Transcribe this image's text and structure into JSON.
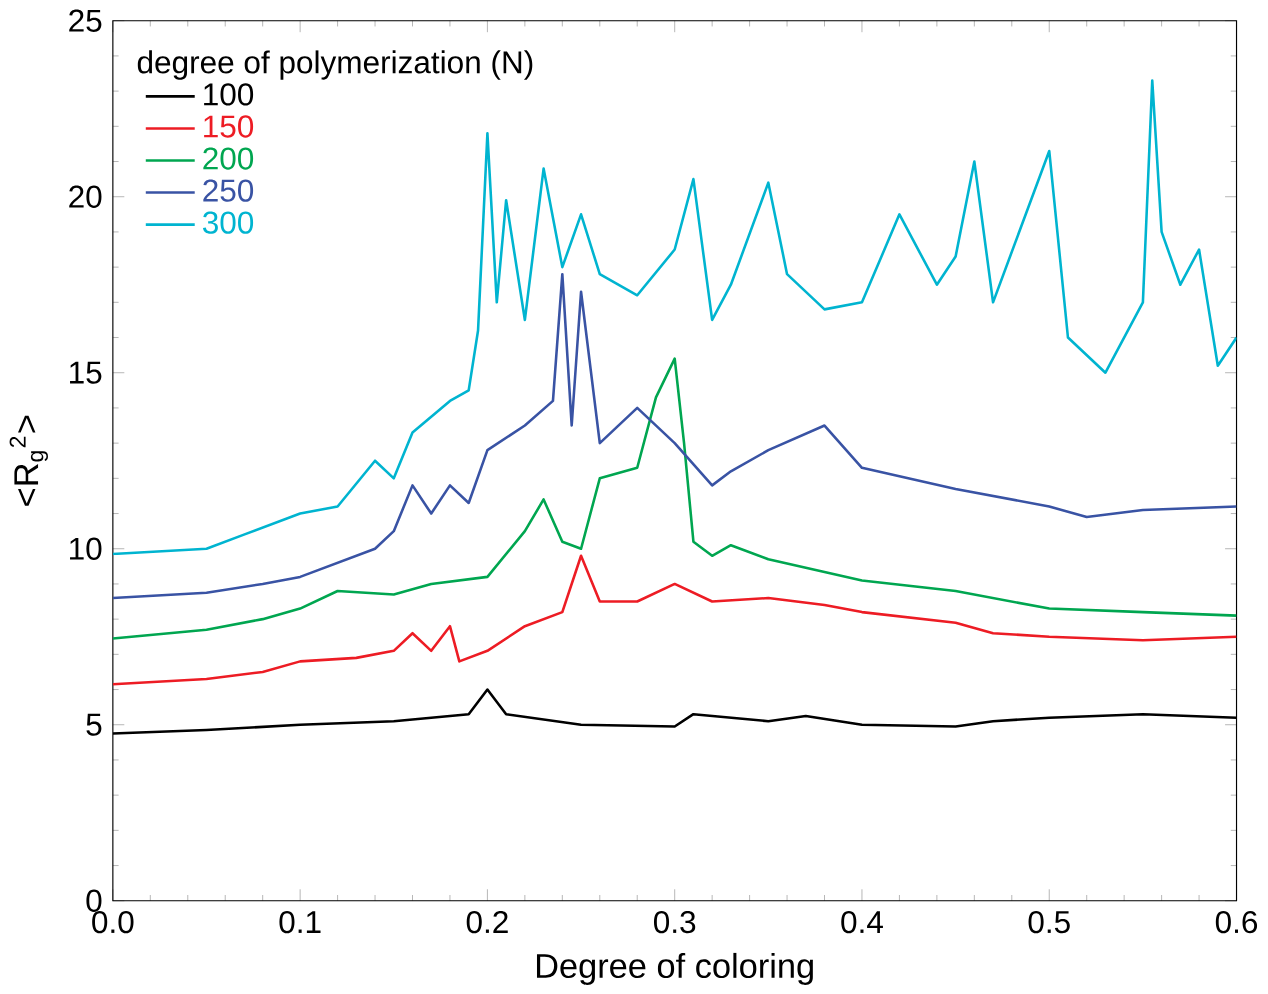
{
  "chart_data": {
    "type": "line",
    "xlabel": "Degree of coloring",
    "ylabel": "<R$_{g}$$^{2}$>",
    "legend_title": "degree of polymerization (N)",
    "legend": "top left",
    "grid": false,
    "marker": "none",
    "line_style": "solid",
    "xlim": [
      0,
      0.6
    ],
    "ylim": [
      0,
      25
    ],
    "xticks": [
      {
        "value": 0,
        "label": "0.0"
      },
      0.1,
      0.2,
      0.3,
      0.4,
      0.5,
      0.6
    ],
    "yticks": [
      0,
      5,
      10,
      15,
      20,
      25
    ],
    "series": [
      {
        "name": "100",
        "color": "#000000",
        "x": [
          0,
          0.05,
          0.1,
          0.15,
          0.19,
          0.2,
          0.21,
          0.25,
          0.3,
          0.31,
          0.35,
          0.37,
          0.4,
          0.45,
          0.47,
          0.5,
          0.55,
          0.6
        ],
        "values": [
          4.75,
          4.85,
          5.0,
          5.1,
          5.3,
          6.0,
          5.3,
          5.0,
          4.95,
          5.3,
          5.1,
          5.25,
          5.0,
          4.95,
          5.1,
          5.2,
          5.3,
          5.2
        ]
      },
      {
        "name": "150",
        "color": "#ed1c24",
        "x": [
          0,
          0.05,
          0.08,
          0.1,
          0.13,
          0.15,
          0.16,
          0.17,
          0.18,
          0.185,
          0.2,
          0.22,
          0.24,
          0.25,
          0.26,
          0.28,
          0.3,
          0.32,
          0.35,
          0.38,
          0.4,
          0.45,
          0.47,
          0.5,
          0.55,
          0.6
        ],
        "values": [
          6.15,
          6.3,
          6.5,
          6.8,
          6.9,
          7.1,
          7.6,
          7.1,
          7.8,
          6.8,
          7.1,
          7.8,
          8.2,
          9.8,
          8.5,
          8.5,
          9.0,
          8.5,
          8.6,
          8.4,
          8.2,
          7.9,
          7.6,
          7.5,
          7.4,
          7.5
        ]
      },
      {
        "name": "200",
        "color": "#00a650",
        "x": [
          0,
          0.05,
          0.08,
          0.1,
          0.12,
          0.15,
          0.17,
          0.2,
          0.22,
          0.23,
          0.24,
          0.25,
          0.26,
          0.28,
          0.29,
          0.3,
          0.305,
          0.31,
          0.32,
          0.33,
          0.35,
          0.4,
          0.45,
          0.5,
          0.55,
          0.6
        ],
        "values": [
          7.45,
          7.7,
          8.0,
          8.3,
          8.8,
          8.7,
          9.0,
          9.2,
          10.5,
          11.4,
          10.2,
          10.0,
          12.0,
          12.3,
          14.3,
          15.4,
          13.0,
          10.2,
          9.8,
          10.1,
          9.7,
          9.1,
          8.8,
          8.3,
          8.2,
          8.1
        ]
      },
      {
        "name": "250",
        "color": "#3953a4",
        "x": [
          0,
          0.05,
          0.08,
          0.1,
          0.14,
          0.15,
          0.16,
          0.17,
          0.18,
          0.19,
          0.2,
          0.22,
          0.235,
          0.24,
          0.245,
          0.25,
          0.26,
          0.28,
          0.3,
          0.32,
          0.33,
          0.35,
          0.38,
          0.4,
          0.45,
          0.5,
          0.52,
          0.55,
          0.6
        ],
        "values": [
          8.6,
          8.75,
          9.0,
          9.2,
          10.0,
          10.5,
          11.8,
          11.0,
          11.8,
          11.3,
          12.8,
          13.5,
          14.2,
          17.8,
          13.5,
          17.3,
          13.0,
          14.0,
          13.0,
          11.8,
          12.2,
          12.8,
          13.5,
          12.3,
          11.7,
          11.2,
          10.9,
          11.1,
          11.2
        ]
      },
      {
        "name": "300",
        "color": "#00b4d0",
        "x": [
          0,
          0.05,
          0.07,
          0.1,
          0.12,
          0.14,
          0.15,
          0.16,
          0.18,
          0.19,
          0.195,
          0.2,
          0.205,
          0.21,
          0.22,
          0.23,
          0.24,
          0.25,
          0.26,
          0.28,
          0.3,
          0.31,
          0.32,
          0.33,
          0.35,
          0.36,
          0.38,
          0.4,
          0.42,
          0.44,
          0.45,
          0.46,
          0.47,
          0.5,
          0.51,
          0.53,
          0.55,
          0.555,
          0.56,
          0.57,
          0.58,
          0.59,
          0.6
        ],
        "values": [
          9.85,
          10.0,
          10.4,
          11.0,
          11.2,
          12.5,
          12.0,
          13.3,
          14.2,
          14.5,
          16.2,
          21.8,
          17.0,
          19.9,
          16.5,
          20.8,
          18.0,
          19.5,
          17.8,
          17.2,
          18.5,
          20.5,
          16.5,
          17.5,
          20.4,
          17.8,
          16.8,
          17.0,
          19.5,
          17.5,
          18.3,
          21.0,
          17.0,
          21.3,
          16.0,
          15.0,
          17.0,
          23.3,
          19.0,
          17.5,
          18.5,
          15.2,
          16.0
        ]
      }
    ]
  }
}
